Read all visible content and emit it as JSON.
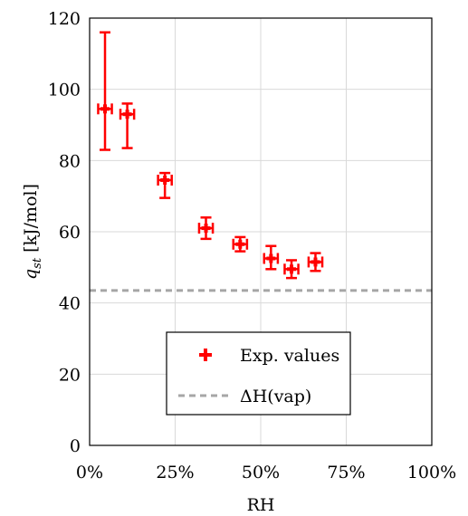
{
  "chart_data": {
    "type": "scatter",
    "title": "",
    "xlabel": "RH",
    "ylabel_main": "q",
    "ylabel_sub": "st",
    "ylabel_unit": " [kJ/mol]",
    "xlim": [
      0,
      1
    ],
    "ylim": [
      0,
      120
    ],
    "x_ticks": [
      0,
      0.25,
      0.5,
      0.75,
      1.0
    ],
    "x_tick_labels": [
      "0%",
      "25%",
      "50%",
      "75%",
      "100%"
    ],
    "y_ticks": [
      0,
      20,
      40,
      60,
      80,
      100,
      120
    ],
    "y_tick_labels": [
      "0",
      "20",
      "40",
      "60",
      "80",
      "100",
      "120"
    ],
    "grid": true,
    "series": [
      {
        "name": "Exp. values",
        "color": "#ff0000",
        "marker": "plus",
        "points": [
          {
            "x": 0.045,
            "y": 94.5,
            "y_low": 83,
            "y_high": 116,
            "x_err": 0.02
          },
          {
            "x": 0.11,
            "y": 93,
            "y_low": 83.5,
            "y_high": 96,
            "x_err": 0.02
          },
          {
            "x": 0.22,
            "y": 74.5,
            "y_low": 69.5,
            "y_high": 76.5,
            "x_err": 0.02
          },
          {
            "x": 0.34,
            "y": 61,
            "y_low": 58,
            "y_high": 64,
            "x_err": 0.02
          },
          {
            "x": 0.44,
            "y": 56.5,
            "y_low": 54.5,
            "y_high": 58.5,
            "x_err": 0.02
          },
          {
            "x": 0.53,
            "y": 52.5,
            "y_low": 49.5,
            "y_high": 56,
            "x_err": 0.02
          },
          {
            "x": 0.59,
            "y": 49.5,
            "y_low": 47,
            "y_high": 52,
            "x_err": 0.02
          },
          {
            "x": 0.66,
            "y": 51.5,
            "y_low": 49,
            "y_high": 54,
            "x_err": 0.02
          }
        ]
      }
    ],
    "reference_line": {
      "name": "ΔH(vap)",
      "y": 43.5,
      "color": "#a6a6a6",
      "style": "dashed"
    },
    "legend_position": "bottom-center"
  }
}
